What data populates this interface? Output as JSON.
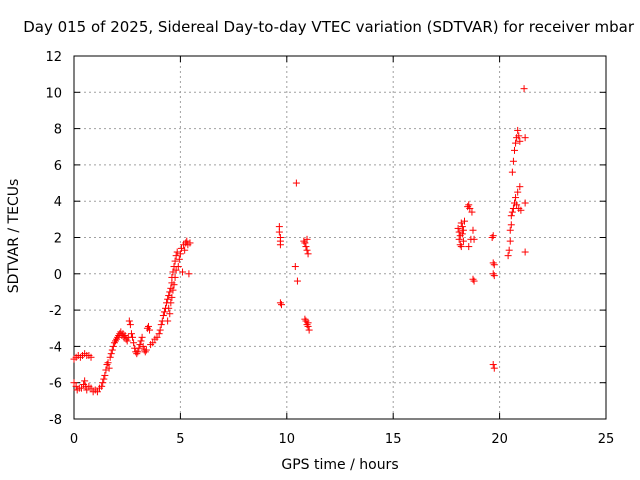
{
  "chart_data": {
    "type": "scatter",
    "title": "Day 015 of 2025, Sidereal Day-to-day VTEC variation (SDTVAR) for receiver mbar",
    "xlabel": "GPS time / hours",
    "ylabel": "SDTVAR / TECUs",
    "xlim": [
      0,
      25
    ],
    "ylim": [
      -8,
      12
    ],
    "xticks": [
      "0",
      "5",
      "10",
      "15",
      "20",
      "25"
    ],
    "yticks": [
      "-8",
      "-6",
      "-4",
      "-2",
      "0",
      "2",
      "4",
      "6",
      "8",
      "10",
      "12"
    ],
    "grid": true,
    "marker": "plus",
    "color": "#ff0000",
    "series": [
      {
        "name": "SDTVAR",
        "points": [
          [
            0.0,
            -4.7
          ],
          [
            0.1,
            -4.6
          ],
          [
            0.2,
            -4.5
          ],
          [
            0.3,
            -4.6
          ],
          [
            0.4,
            -4.5
          ],
          [
            0.5,
            -4.4
          ],
          [
            0.6,
            -4.5
          ],
          [
            0.7,
            -4.5
          ],
          [
            0.8,
            -4.6
          ],
          [
            0.0,
            -6.0
          ],
          [
            0.1,
            -6.2
          ],
          [
            0.15,
            -6.4
          ],
          [
            0.25,
            -6.3
          ],
          [
            0.35,
            -6.3
          ],
          [
            0.45,
            -6.1
          ],
          [
            0.5,
            -5.9
          ],
          [
            0.55,
            -6.2
          ],
          [
            0.6,
            -6.4
          ],
          [
            0.7,
            -6.2
          ],
          [
            0.8,
            -6.3
          ],
          [
            0.9,
            -6.5
          ],
          [
            1.0,
            -6.4
          ],
          [
            1.1,
            -6.5
          ],
          [
            1.2,
            -6.3
          ],
          [
            1.3,
            -6.2
          ],
          [
            1.35,
            -6.0
          ],
          [
            1.4,
            -5.8
          ],
          [
            1.45,
            -5.6
          ],
          [
            1.5,
            -5.3
          ],
          [
            1.55,
            -5.0
          ],
          [
            1.6,
            -4.9
          ],
          [
            1.65,
            -5.2
          ],
          [
            1.7,
            -4.6
          ],
          [
            1.75,
            -4.4
          ],
          [
            1.8,
            -4.2
          ],
          [
            1.85,
            -4.0
          ],
          [
            1.9,
            -3.8
          ],
          [
            1.95,
            -3.7
          ],
          [
            2.0,
            -3.6
          ],
          [
            2.05,
            -3.5
          ],
          [
            2.1,
            -3.4
          ],
          [
            2.15,
            -3.3
          ],
          [
            2.2,
            -3.2
          ],
          [
            2.25,
            -3.4
          ],
          [
            2.3,
            -3.3
          ],
          [
            2.35,
            -3.5
          ],
          [
            2.4,
            -3.4
          ],
          [
            2.45,
            -3.6
          ],
          [
            2.5,
            -3.7
          ],
          [
            2.55,
            -3.5
          ],
          [
            2.6,
            -2.6
          ],
          [
            2.65,
            -2.8
          ],
          [
            2.7,
            -3.3
          ],
          [
            2.75,
            -3.5
          ],
          [
            2.8,
            -3.8
          ],
          [
            2.85,
            -4.1
          ],
          [
            2.9,
            -4.3
          ],
          [
            2.95,
            -4.4
          ],
          [
            3.0,
            -4.3
          ],
          [
            3.05,
            -4.1
          ],
          [
            3.1,
            -3.9
          ],
          [
            3.15,
            -3.7
          ],
          [
            3.2,
            -3.5
          ],
          [
            3.25,
            -4.0
          ],
          [
            3.3,
            -4.2
          ],
          [
            3.35,
            -4.3
          ],
          [
            3.4,
            -4.2
          ],
          [
            3.45,
            -3.0
          ],
          [
            3.5,
            -2.9
          ],
          [
            3.55,
            -3.1
          ],
          [
            3.6,
            -3.9
          ],
          [
            3.7,
            -3.8
          ],
          [
            3.8,
            -3.6
          ],
          [
            3.9,
            -3.5
          ],
          [
            4.0,
            -3.3
          ],
          [
            4.05,
            -3.1
          ],
          [
            4.1,
            -2.8
          ],
          [
            4.15,
            -2.6
          ],
          [
            4.2,
            -2.3
          ],
          [
            4.25,
            -2.1
          ],
          [
            4.3,
            -1.9
          ],
          [
            4.35,
            -1.6
          ],
          [
            4.4,
            -1.4
          ],
          [
            4.4,
            -2.6
          ],
          [
            4.45,
            -1.9
          ],
          [
            4.45,
            -1.2
          ],
          [
            4.5,
            -1.0
          ],
          [
            4.5,
            -2.2
          ],
          [
            4.55,
            -0.8
          ],
          [
            4.55,
            -1.6
          ],
          [
            4.6,
            -0.5
          ],
          [
            4.6,
            -1.3
          ],
          [
            4.6,
            -0.2
          ],
          [
            4.65,
            0.1
          ],
          [
            4.65,
            -0.9
          ],
          [
            4.7,
            0.4
          ],
          [
            4.7,
            -0.6
          ],
          [
            4.75,
            0.7
          ],
          [
            4.75,
            -0.2
          ],
          [
            4.8,
            1.0
          ],
          [
            4.8,
            0.2
          ],
          [
            4.85,
            1.2
          ],
          [
            4.9,
            0.4
          ],
          [
            4.95,
            0.8
          ],
          [
            5.0,
            1.1
          ],
          [
            5.05,
            1.4
          ],
          [
            5.1,
            0.1
          ],
          [
            5.15,
            1.6
          ],
          [
            5.2,
            1.3
          ],
          [
            5.25,
            1.7
          ],
          [
            5.3,
            1.8
          ],
          [
            5.35,
            1.6
          ],
          [
            5.4,
            0.0
          ],
          [
            5.45,
            1.7
          ],
          [
            9.65,
            2.6
          ],
          [
            9.65,
            2.3
          ],
          [
            9.7,
            2.0
          ],
          [
            9.7,
            1.8
          ],
          [
            9.7,
            1.6
          ],
          [
            9.7,
            -1.6
          ],
          [
            9.75,
            -1.7
          ],
          [
            10.4,
            0.4
          ],
          [
            10.45,
            5.0
          ],
          [
            10.5,
            -0.4
          ],
          [
            10.8,
            1.8
          ],
          [
            10.85,
            1.7
          ],
          [
            10.9,
            1.5
          ],
          [
            10.95,
            1.3
          ],
          [
            10.95,
            1.9
          ],
          [
            11.0,
            1.1
          ],
          [
            10.85,
            -2.5
          ],
          [
            10.9,
            -2.6
          ],
          [
            10.95,
            -2.8
          ],
          [
            11.0,
            -2.9
          ],
          [
            11.05,
            -3.1
          ],
          [
            11.0,
            -2.7
          ],
          [
            18.05,
            2.5
          ],
          [
            18.1,
            2.3
          ],
          [
            18.1,
            1.9
          ],
          [
            18.15,
            1.6
          ],
          [
            18.15,
            2.1
          ],
          [
            18.2,
            2.8
          ],
          [
            18.2,
            1.5
          ],
          [
            18.25,
            2.6
          ],
          [
            18.25,
            2.2
          ],
          [
            18.3,
            2.4
          ],
          [
            18.3,
            1.8
          ],
          [
            18.35,
            2.9
          ],
          [
            18.5,
            3.7
          ],
          [
            18.55,
            3.8
          ],
          [
            18.6,
            3.6
          ],
          [
            18.55,
            1.5
          ],
          [
            18.65,
            1.9
          ],
          [
            18.7,
            3.4
          ],
          [
            18.75,
            2.4
          ],
          [
            18.8,
            1.9
          ],
          [
            18.75,
            -0.3
          ],
          [
            18.8,
            -0.4
          ],
          [
            19.65,
            2.0
          ],
          [
            19.7,
            2.1
          ],
          [
            19.7,
            0.6
          ],
          [
            19.75,
            0.5
          ],
          [
            19.7,
            0.0
          ],
          [
            19.75,
            -0.1
          ],
          [
            19.7,
            -5.0
          ],
          [
            19.75,
            -5.2
          ],
          [
            20.4,
            1.0
          ],
          [
            20.45,
            1.3
          ],
          [
            20.5,
            1.8
          ],
          [
            20.5,
            2.4
          ],
          [
            20.55,
            3.2
          ],
          [
            20.55,
            2.7
          ],
          [
            20.6,
            3.4
          ],
          [
            20.6,
            5.6
          ],
          [
            20.65,
            6.2
          ],
          [
            20.65,
            3.6
          ],
          [
            20.7,
            6.8
          ],
          [
            20.7,
            3.9
          ],
          [
            20.75,
            7.2
          ],
          [
            20.75,
            4.2
          ],
          [
            20.8,
            7.5
          ],
          [
            20.8,
            3.8
          ],
          [
            20.85,
            7.9
          ],
          [
            20.85,
            4.5
          ],
          [
            20.9,
            7.6
          ],
          [
            20.9,
            3.6
          ],
          [
            20.95,
            4.8
          ],
          [
            20.95,
            7.3
          ],
          [
            21.0,
            3.5
          ],
          [
            21.15,
            10.2
          ],
          [
            21.2,
            7.5
          ],
          [
            21.2,
            3.9
          ],
          [
            21.2,
            1.2
          ]
        ]
      }
    ]
  }
}
